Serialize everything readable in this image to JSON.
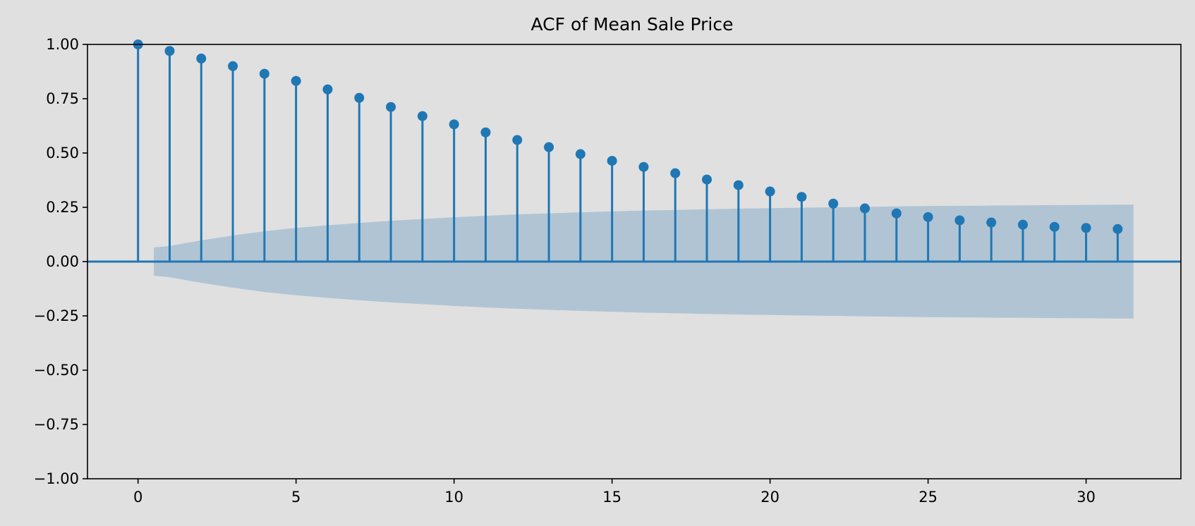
{
  "chart_data": {
    "type": "stem",
    "title": "ACF of Mean Sale Price",
    "xlabel": "",
    "ylabel": "",
    "xlim": [
      -1.6,
      33.0
    ],
    "ylim": [
      -1.0,
      1.0
    ],
    "x_ticks": [
      0,
      5,
      10,
      15,
      20,
      25,
      30
    ],
    "x_tick_labels": [
      "0",
      "5",
      "10",
      "15",
      "20",
      "25",
      "30"
    ],
    "y_ticks": [
      1.0,
      0.75,
      0.5,
      0.25,
      0.0,
      -0.25,
      -0.5,
      -0.75,
      -1.0
    ],
    "y_tick_labels": [
      "1.00",
      "0.75",
      "0.50",
      "0.25",
      "0.00",
      "−0.25",
      "−0.50",
      "−0.75",
      "−1.00"
    ],
    "grid": false,
    "lags": [
      0,
      1,
      2,
      3,
      4,
      5,
      6,
      7,
      8,
      9,
      10,
      11,
      12,
      13,
      14,
      15,
      16,
      17,
      18,
      19,
      20,
      21,
      22,
      23,
      24,
      25,
      26,
      27,
      28,
      29,
      30,
      31
    ],
    "acf": [
      1.0,
      0.97,
      0.935,
      0.9,
      0.865,
      0.832,
      0.793,
      0.754,
      0.712,
      0.67,
      0.632,
      0.595,
      0.56,
      0.527,
      0.495,
      0.464,
      0.436,
      0.407,
      0.378,
      0.352,
      0.323,
      0.298,
      0.267,
      0.245,
      0.222,
      0.205,
      0.19,
      0.18,
      0.17,
      0.16,
      0.155,
      0.15
    ],
    "confidence_band": {
      "lags": [
        0.5,
        1,
        2,
        3,
        4,
        5,
        6,
        7,
        8,
        9,
        10,
        11,
        12,
        13,
        14,
        15,
        16,
        17,
        18,
        19,
        20,
        21,
        22,
        23,
        24,
        25,
        26,
        27,
        28,
        29,
        30,
        31,
        31.5
      ],
      "upper": [
        0.065,
        0.072,
        0.098,
        0.12,
        0.14,
        0.155,
        0.167,
        0.178,
        0.188,
        0.196,
        0.204,
        0.211,
        0.217,
        0.222,
        0.227,
        0.231,
        0.235,
        0.238,
        0.241,
        0.244,
        0.246,
        0.248,
        0.25,
        0.252,
        0.254,
        0.256,
        0.257,
        0.258,
        0.259,
        0.26,
        0.261,
        0.262,
        0.262
      ],
      "color": "#b0c4d4"
    },
    "colors": {
      "stem": "#1f77b4",
      "band": "#b0c4d4",
      "background": "#e0e0e0"
    }
  }
}
